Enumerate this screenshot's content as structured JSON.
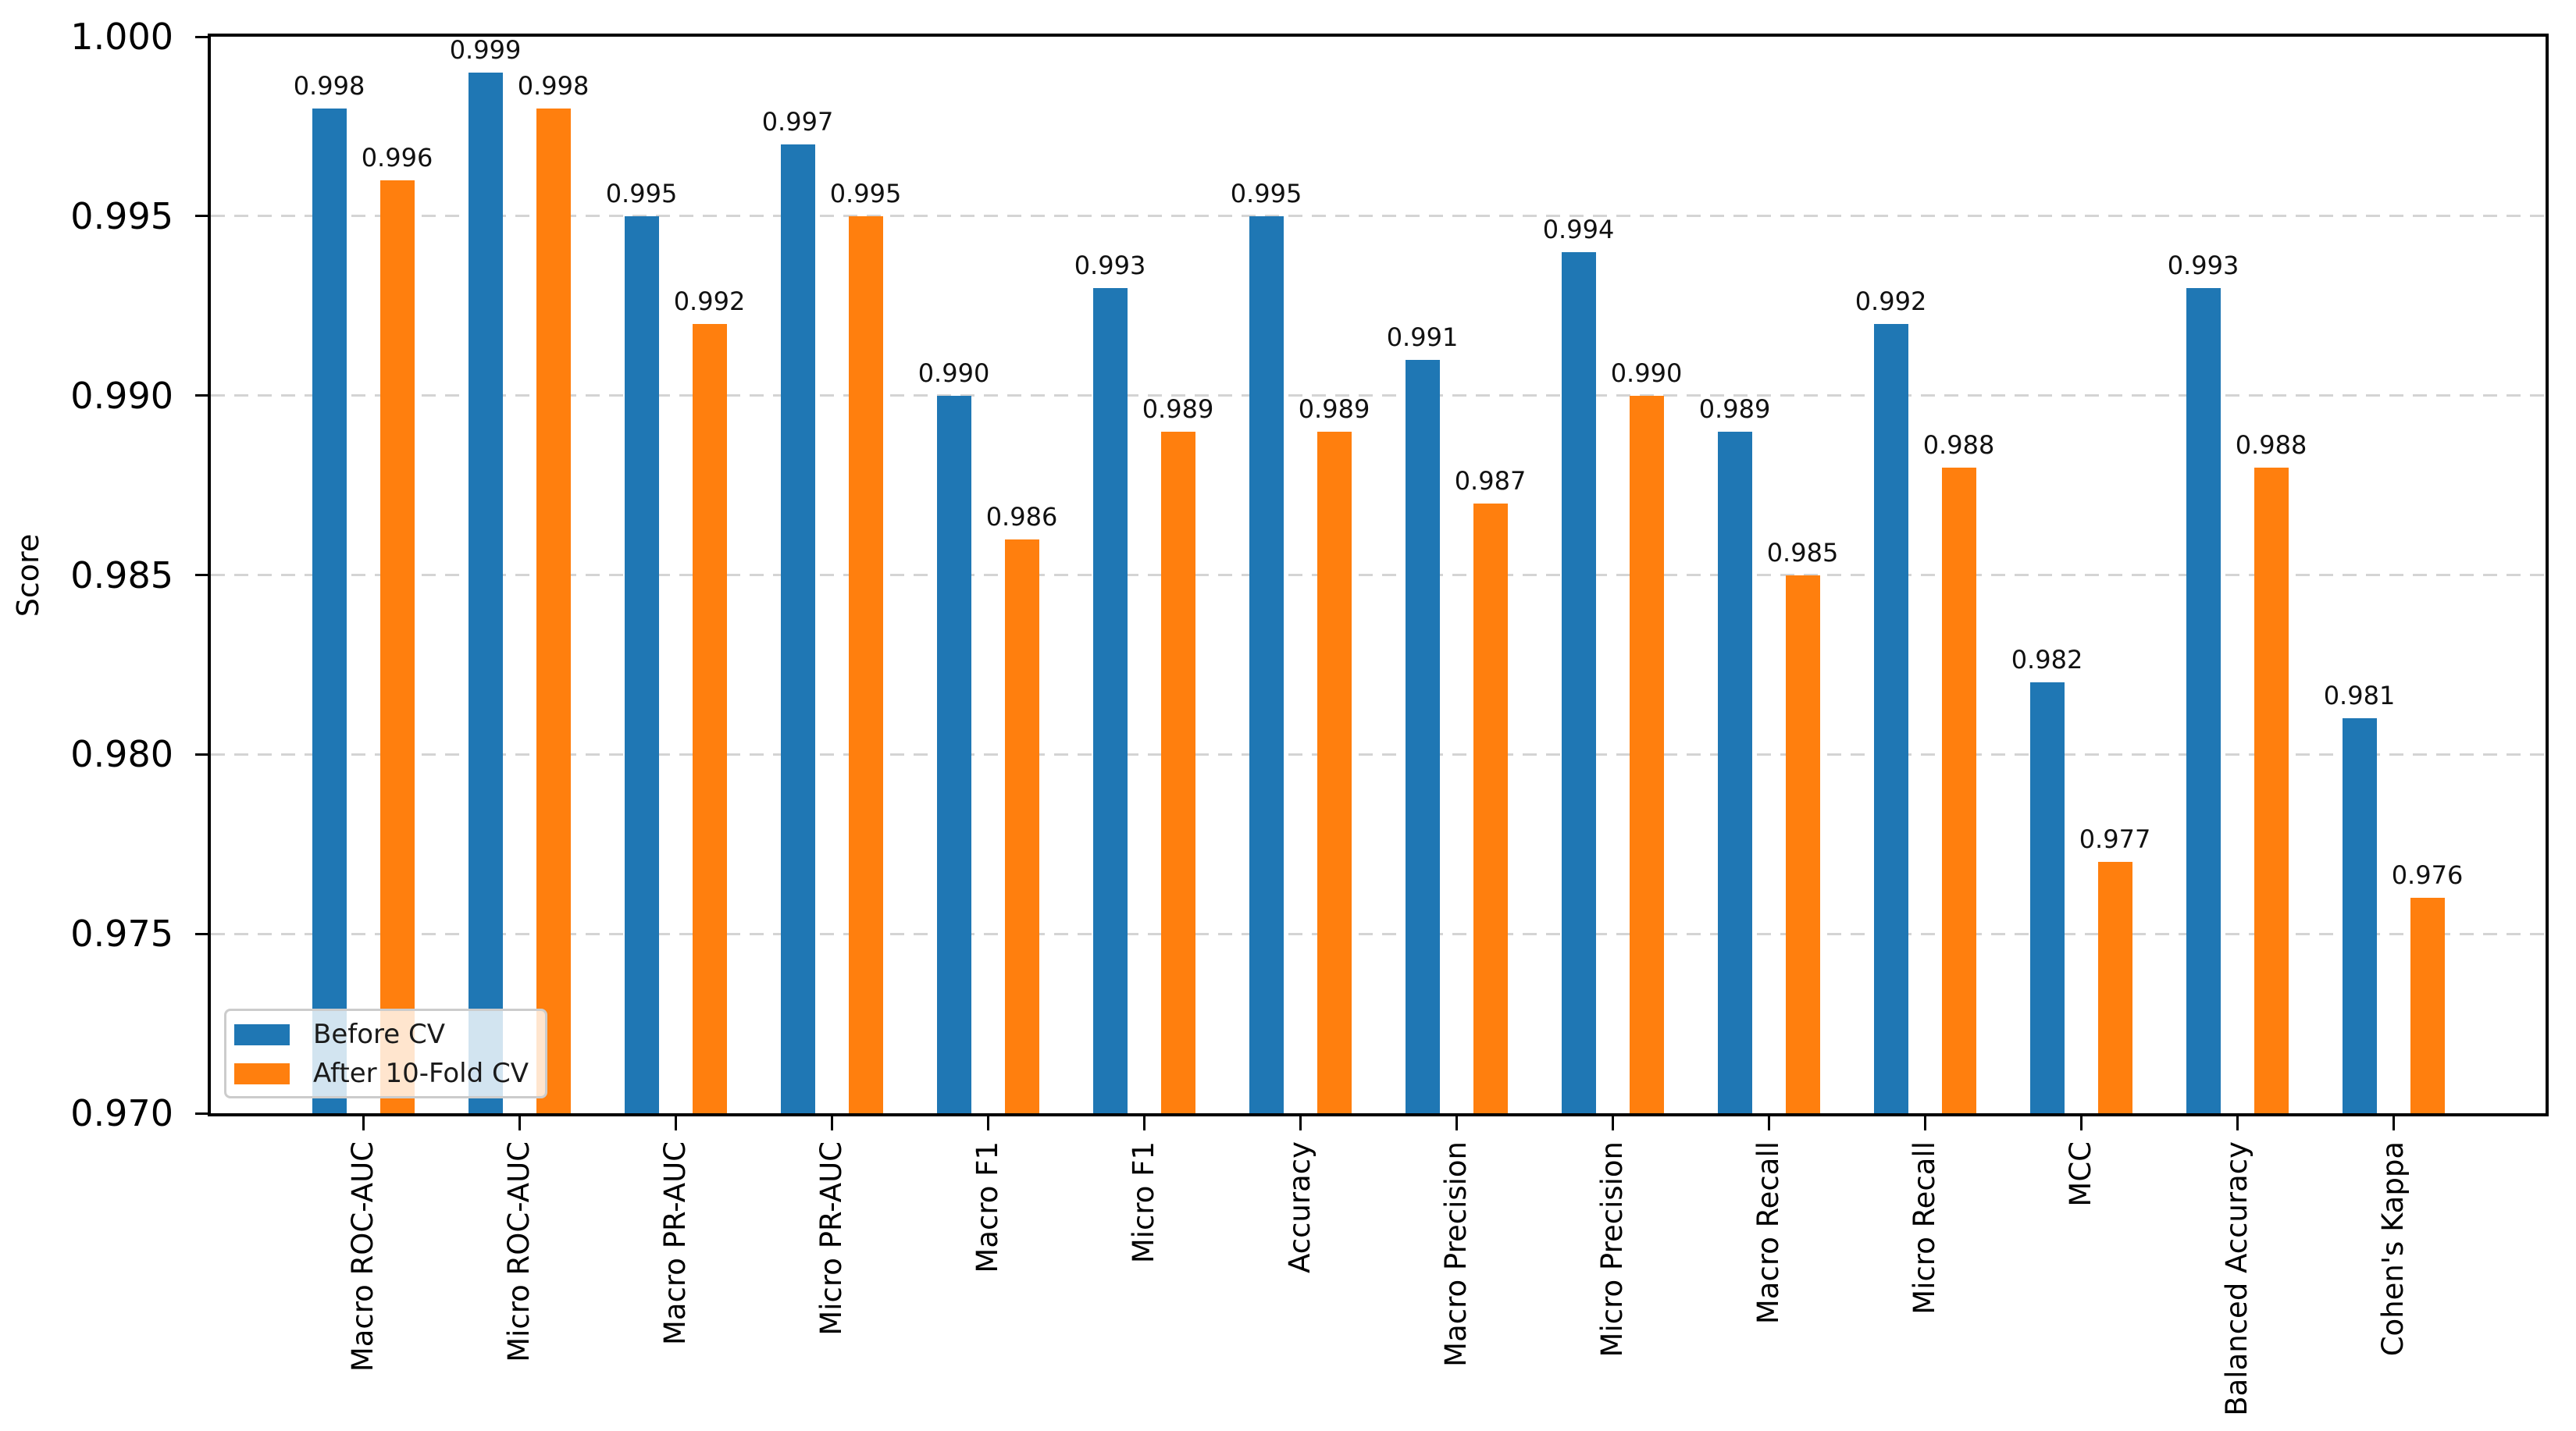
{
  "chart_data": {
    "type": "bar",
    "title": "",
    "xlabel": "",
    "ylabel": "Score",
    "ylim": [
      0.97,
      1.0
    ],
    "yticks": [
      1.0,
      0.995,
      0.99,
      0.985,
      0.98,
      0.975,
      0.97
    ],
    "ytick_labels": [
      "1.000",
      "0.995",
      "0.990",
      "0.985",
      "0.980",
      "0.975",
      "0.970"
    ],
    "grid": {
      "axis": "y",
      "style": "dashed",
      "color": "#d4d4d4",
      "axisbelow": true
    },
    "legend_position": "lower left",
    "bar_value_label_decimals": 3,
    "categories": [
      "Macro ROC-AUC",
      "Micro ROC-AUC",
      "Macro PR-AUC",
      "Micro PR-AUC",
      "Macro F1",
      "Micro F1",
      "Accuracy",
      "Macro Precision",
      "Micro Precision",
      "Macro Recall",
      "Micro Recall",
      "MCC",
      "Balanced Accuracy",
      "Cohen's Kappa"
    ],
    "series": [
      {
        "name": "Before CV",
        "color": "#1f77b4",
        "values": [
          0.998,
          0.999,
          0.995,
          0.997,
          0.99,
          0.993,
          0.995,
          0.991,
          0.994,
          0.989,
          0.992,
          0.982,
          0.993,
          0.981
        ]
      },
      {
        "name": "After 10-Fold CV",
        "color": "#ff7f0e",
        "values": [
          0.996,
          0.998,
          0.992,
          0.995,
          0.986,
          0.989,
          0.989,
          0.987,
          0.99,
          0.985,
          0.988,
          0.977,
          0.988,
          0.976
        ]
      }
    ]
  },
  "colors": {
    "before_cv": "#1f77b4",
    "after_cv": "#ff7f0e",
    "gridline": "#d4d4d4",
    "spine": "#000000",
    "legend_border": "#cccccc"
  }
}
